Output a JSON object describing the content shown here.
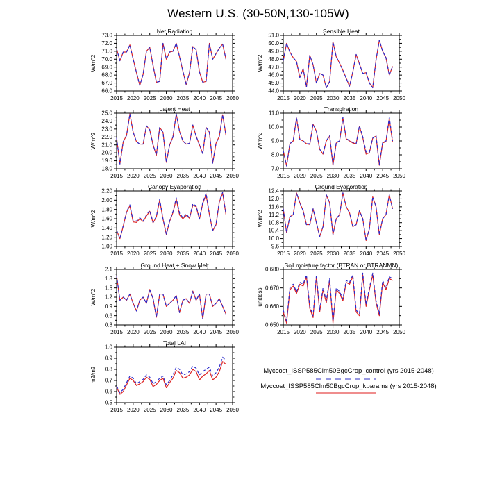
{
  "page_title": "Western U.S. (30-50N,130-105W)",
  "colors": {
    "control_line": "#2b2bcc",
    "kparams_line": "#dd2222",
    "legend_control": "#9898e2",
    "legend_kparams": "#ef8d8d",
    "axis": "#000000"
  },
  "legend": {
    "entries": [
      {
        "name": "control",
        "label": "Myccost_ISSP585Clm50BgcCrop_control (yrs 2015-2048)",
        "style": "dashed"
      },
      {
        "name": "kparams",
        "label": "Myccost_ISSP585Clm50BgcCrop_kparams (yrs 2015-2048)",
        "style": "solid"
      }
    ]
  },
  "chart_data": [
    {
      "type": "line",
      "title": "Net Radiation",
      "ylabel": "W/m^2",
      "ylim": [
        66.0,
        73.0
      ],
      "ystep": 1.0,
      "ydecimals": 1,
      "xlim": [
        2015,
        2050
      ],
      "xstep": 5,
      "x0": 2015,
      "series": [
        {
          "name": "control",
          "dashed": true,
          "values": [
            71.3,
            69.8,
            70.9,
            70.9,
            71.8,
            70.0,
            68.3,
            66.7,
            68.1,
            71.0,
            71.5,
            69.2,
            67.1,
            67.2,
            72.0,
            70.0,
            70.9,
            71.0,
            72.0,
            70.3,
            68.5,
            66.8,
            68.3,
            71.6,
            71.2,
            68.4,
            67.1,
            67.2,
            72.0,
            70.0,
            70.7,
            71.4,
            71.9,
            70.0
          ]
        },
        {
          "name": "kparams",
          "dashed": false,
          "values": [
            71.3,
            69.8,
            70.9,
            70.9,
            71.8,
            70.0,
            68.3,
            66.7,
            68.1,
            71.0,
            71.5,
            69.2,
            67.1,
            67.2,
            72.0,
            70.0,
            70.9,
            71.0,
            72.0,
            70.3,
            68.5,
            66.8,
            68.3,
            71.6,
            71.2,
            68.4,
            67.1,
            67.2,
            72.0,
            70.0,
            70.7,
            71.4,
            71.9,
            70.0
          ]
        }
      ]
    },
    {
      "type": "line",
      "title": "Sensible Heat",
      "ylabel": "W/m^2",
      "ylim": [
        44.0,
        51.0
      ],
      "ystep": 1.0,
      "ydecimals": 1,
      "xlim": [
        2015,
        2050
      ],
      "xstep": 5,
      "x0": 2015,
      "series": [
        {
          "name": "control",
          "dashed": true,
          "values": [
            47.8,
            50.0,
            48.9,
            48.2,
            47.7,
            45.7,
            46.8,
            44.5,
            48.5,
            47.3,
            45.0,
            46.2,
            46.0,
            44.4,
            45.2,
            50.2,
            48.3,
            47.5,
            46.6,
            45.6,
            44.6,
            46.4,
            48.6,
            47.4,
            46.2,
            46.3,
            45.0,
            44.4,
            47.9,
            50.4,
            49.0,
            48.2,
            46.0,
            47.1
          ]
        },
        {
          "name": "kparams",
          "dashed": false,
          "values": [
            47.8,
            50.0,
            48.9,
            48.2,
            47.7,
            45.7,
            46.8,
            44.5,
            48.5,
            47.3,
            45.0,
            46.2,
            46.0,
            44.4,
            45.2,
            50.2,
            48.3,
            47.5,
            46.6,
            45.6,
            44.6,
            46.4,
            48.6,
            47.4,
            46.2,
            46.3,
            45.0,
            44.4,
            47.9,
            50.4,
            49.0,
            48.2,
            46.0,
            47.1
          ]
        }
      ]
    },
    {
      "type": "line",
      "title": "Latent Heat",
      "ylabel": "W/m^2",
      "ylim": [
        18.0,
        25.0
      ],
      "ystep": 1.0,
      "ydecimals": 1,
      "xlim": [
        2015,
        2050
      ],
      "xstep": 5,
      "x0": 2015,
      "series": [
        {
          "name": "control",
          "dashed": true,
          "values": [
            21.9,
            18.6,
            21.4,
            22.2,
            24.9,
            22.6,
            21.4,
            21.1,
            21.1,
            23.4,
            22.9,
            21.0,
            19.7,
            23.2,
            22.6,
            18.8,
            21.0,
            22.0,
            24.9,
            22.7,
            21.5,
            21.1,
            21.2,
            23.5,
            22.1,
            21.0,
            19.9,
            23.2,
            22.6,
            18.7,
            21.2,
            22.1,
            24.8,
            22.2
          ]
        },
        {
          "name": "kparams",
          "dashed": false,
          "values": [
            21.9,
            18.6,
            21.4,
            22.2,
            24.9,
            22.6,
            21.4,
            21.1,
            21.1,
            23.4,
            22.9,
            21.0,
            19.7,
            23.2,
            22.6,
            18.8,
            21.0,
            22.0,
            24.9,
            22.7,
            21.5,
            21.1,
            21.2,
            23.5,
            22.1,
            21.0,
            19.9,
            23.2,
            22.6,
            18.7,
            21.2,
            22.1,
            24.8,
            22.2
          ]
        }
      ]
    },
    {
      "type": "line",
      "title": "Transpiration",
      "ylabel": "W/m^2",
      "ylim": [
        7.0,
        11.0
      ],
      "ystep": 1.0,
      "ydecimals": 1,
      "xlim": [
        2015,
        2050
      ],
      "xstep": 5,
      "x0": 2015,
      "series": [
        {
          "name": "control",
          "dashed": true,
          "values": [
            8.3,
            7.2,
            8.8,
            9.0,
            10.7,
            9.1,
            9.0,
            8.8,
            8.8,
            10.2,
            9.7,
            8.4,
            8.1,
            9.0,
            9.4,
            7.3,
            8.9,
            9.0,
            10.7,
            9.2,
            9.0,
            8.9,
            8.8,
            10.1,
            9.3,
            8.2,
            8.2,
            9.2,
            9.4,
            7.3,
            8.9,
            9.0,
            10.7,
            9.0
          ]
        },
        {
          "name": "kparams",
          "dashed": false,
          "values": [
            8.3,
            7.2,
            8.8,
            9.0,
            10.65,
            9.1,
            9.0,
            8.8,
            8.75,
            10.2,
            9.7,
            8.4,
            8.05,
            9.0,
            9.35,
            7.25,
            8.85,
            9.0,
            10.65,
            9.15,
            9.0,
            8.85,
            8.8,
            10.05,
            9.25,
            8.05,
            8.15,
            9.2,
            9.35,
            7.25,
            8.85,
            8.95,
            10.6,
            8.9
          ]
        }
      ]
    },
    {
      "type": "line",
      "title": "Canopy Evaporation",
      "ylabel": "W/m^2",
      "ylim": [
        1.0,
        2.2
      ],
      "ystep": 0.2,
      "ydecimals": 2,
      "xlim": [
        2015,
        2050
      ],
      "xstep": 5,
      "x0": 2015,
      "series": [
        {
          "name": "control",
          "dashed": true,
          "values": [
            1.35,
            1.17,
            1.45,
            1.75,
            1.9,
            1.55,
            1.55,
            1.62,
            1.55,
            1.68,
            1.78,
            1.52,
            1.65,
            2.02,
            1.6,
            1.27,
            1.55,
            1.75,
            2.05,
            1.72,
            1.62,
            1.7,
            1.62,
            1.92,
            1.88,
            1.6,
            1.95,
            2.15,
            1.7,
            1.35,
            1.48,
            1.98,
            2.17,
            1.7
          ]
        },
        {
          "name": "kparams",
          "dashed": false,
          "values": [
            1.35,
            1.17,
            1.44,
            1.74,
            1.88,
            1.53,
            1.52,
            1.6,
            1.54,
            1.66,
            1.76,
            1.51,
            1.64,
            2.0,
            1.59,
            1.26,
            1.54,
            1.73,
            2.02,
            1.68,
            1.6,
            1.67,
            1.61,
            1.89,
            1.86,
            1.59,
            1.93,
            2.12,
            1.69,
            1.34,
            1.47,
            1.96,
            2.15,
            1.69
          ]
        }
      ]
    },
    {
      "type": "line",
      "title": "Ground Evaporation",
      "ylabel": "W/m^2",
      "ylim": [
        9.6,
        12.4
      ],
      "ystep": 0.4,
      "ydecimals": 1,
      "xlim": [
        2015,
        2050
      ],
      "xstep": 5,
      "x0": 2015,
      "series": [
        {
          "name": "control",
          "dashed": true,
          "values": [
            11.5,
            10.3,
            11.1,
            11.2,
            12.3,
            11.8,
            11.4,
            10.7,
            10.7,
            11.5,
            10.8,
            10.1,
            10.6,
            12.2,
            11.8,
            10.2,
            11.0,
            11.2,
            12.3,
            11.6,
            11.3,
            10.6,
            10.7,
            11.4,
            11.0,
            9.9,
            10.5,
            12.1,
            11.6,
            10.2,
            11.0,
            11.2,
            12.2,
            11.5
          ]
        },
        {
          "name": "kparams",
          "dashed": false,
          "values": [
            11.5,
            10.3,
            11.1,
            11.2,
            12.3,
            11.8,
            11.4,
            10.7,
            10.7,
            11.5,
            10.8,
            10.1,
            10.6,
            12.2,
            11.8,
            10.2,
            11.0,
            11.2,
            12.3,
            11.6,
            11.3,
            10.6,
            10.7,
            11.4,
            11.0,
            9.9,
            10.5,
            12.1,
            11.6,
            10.2,
            11.0,
            11.2,
            12.2,
            11.5
          ]
        }
      ]
    },
    {
      "type": "line",
      "title": "Ground Heat + Snow Melt",
      "ylabel": "W/m^2",
      "ylim": [
        0.3,
        2.1
      ],
      "ystep": 0.3,
      "ydecimals": 1,
      "xlim": [
        2015,
        2050
      ],
      "xstep": 5,
      "x0": 2015,
      "series": [
        {
          "name": "control",
          "dashed": true,
          "values": [
            1.9,
            1.1,
            1.2,
            1.1,
            1.3,
            1.0,
            0.75,
            1.1,
            1.2,
            1.0,
            1.45,
            1.15,
            0.55,
            1.3,
            1.3,
            0.9,
            1.0,
            1.1,
            1.25,
            0.7,
            1.1,
            1.15,
            1.0,
            1.4,
            1.1,
            1.3,
            0.5,
            1.3,
            1.3,
            0.9,
            1.0,
            1.15,
            0.9,
            0.65
          ]
        },
        {
          "name": "kparams",
          "dashed": false,
          "values": [
            1.9,
            1.1,
            1.2,
            1.1,
            1.3,
            1.0,
            0.75,
            1.1,
            1.2,
            1.0,
            1.45,
            1.15,
            0.55,
            1.3,
            1.3,
            0.9,
            1.0,
            1.1,
            1.25,
            0.7,
            1.1,
            1.15,
            1.0,
            1.4,
            1.1,
            1.3,
            0.5,
            1.3,
            1.3,
            0.9,
            1.0,
            1.15,
            0.9,
            0.65
          ]
        }
      ]
    },
    {
      "type": "line",
      "title": "Soil moisture factor (BTRAN or BTRANMN)",
      "ylabel": "unitless",
      "ylim": [
        0.65,
        0.68
      ],
      "ystep": 0.01,
      "ydecimals": 3,
      "xlim": [
        2015,
        2050
      ],
      "xstep": 5,
      "x0": 2015,
      "series": [
        {
          "name": "control",
          "dashed": true,
          "values": [
            0.658,
            0.652,
            0.67,
            0.672,
            0.668,
            0.673,
            0.672,
            0.677,
            0.66,
            0.655,
            0.677,
            0.658,
            0.67,
            0.663,
            0.675,
            0.652,
            0.67,
            0.668,
            0.664,
            0.674,
            0.673,
            0.677,
            0.658,
            0.656,
            0.678,
            0.661,
            0.67,
            0.678,
            0.663,
            0.656,
            0.674,
            0.67,
            0.676,
            0.675
          ]
        },
        {
          "name": "kparams",
          "dashed": false,
          "values": [
            0.657,
            0.651,
            0.669,
            0.671,
            0.667,
            0.672,
            0.671,
            0.676,
            0.659,
            0.654,
            0.676,
            0.657,
            0.669,
            0.662,
            0.674,
            0.651,
            0.669,
            0.667,
            0.663,
            0.673,
            0.672,
            0.676,
            0.657,
            0.655,
            0.677,
            0.66,
            0.669,
            0.677,
            0.662,
            0.655,
            0.673,
            0.669,
            0.675,
            0.674
          ]
        }
      ]
    },
    {
      "type": "line",
      "title": "Total LAI",
      "ylabel": "m2/m2",
      "ylim": [
        0.5,
        1.0
      ],
      "ystep": 0.1,
      "ydecimals": 1,
      "xlim": [
        2015,
        2050
      ],
      "xstep": 5,
      "x0": 2015,
      "series": [
        {
          "name": "control",
          "dashed": true,
          "values": [
            0.65,
            0.59,
            0.62,
            0.68,
            0.74,
            0.72,
            0.67,
            0.69,
            0.71,
            0.75,
            0.73,
            0.67,
            0.69,
            0.72,
            0.74,
            0.66,
            0.7,
            0.75,
            0.82,
            0.8,
            0.75,
            0.76,
            0.78,
            0.83,
            0.81,
            0.75,
            0.78,
            0.8,
            0.82,
            0.74,
            0.77,
            0.82,
            0.91,
            0.88
          ]
        },
        {
          "name": "kparams",
          "dashed": false,
          "values": [
            0.64,
            0.575,
            0.6,
            0.66,
            0.72,
            0.7,
            0.655,
            0.67,
            0.69,
            0.73,
            0.71,
            0.645,
            0.665,
            0.7,
            0.72,
            0.635,
            0.68,
            0.72,
            0.79,
            0.77,
            0.72,
            0.73,
            0.75,
            0.8,
            0.78,
            0.705,
            0.74,
            0.76,
            0.79,
            0.705,
            0.73,
            0.78,
            0.87,
            0.845
          ]
        }
      ]
    }
  ]
}
